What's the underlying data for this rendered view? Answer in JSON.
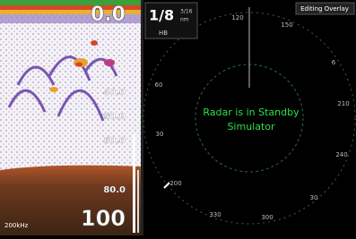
{
  "sonar": {
    "depth": "0.0",
    "depth_labels": [
      "40.0",
      "50.0",
      "60.0",
      "80.0"
    ],
    "frequency": "200kHz",
    "range": "100"
  },
  "radar": {
    "range": "1/8",
    "range_fraction": "3/16",
    "unit": "nm",
    "mode": "HB",
    "overlay_button": "Editing Overlay",
    "bearings": [
      "120",
      "150",
      "6",
      "210",
      "240",
      "30",
      "300",
      "330",
      "200",
      "30",
      "60"
    ],
    "status": "Radar is in Standby",
    "source": "Simulator"
  }
}
